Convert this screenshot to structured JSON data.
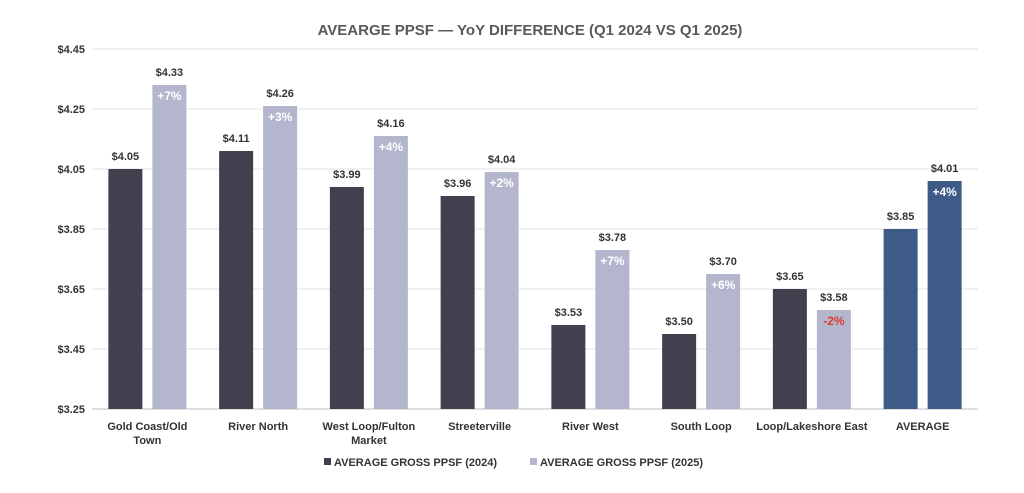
{
  "chart_data": {
    "type": "bar",
    "title": "AVEARGE PPSF — YoY DIFFERENCE (Q1 2024 VS Q1 2025)",
    "categories": [
      [
        "Gold Coast/Old",
        "Town"
      ],
      [
        "River North"
      ],
      [
        "West Loop/Fulton",
        "Market"
      ],
      [
        "Streeterville"
      ],
      [
        "River West"
      ],
      [
        "South Loop"
      ],
      [
        "Loop/Lakeshore East"
      ],
      [
        "AVERAGE"
      ]
    ],
    "series": [
      {
        "name": "AVERAGE GROSS PPSF (2024)",
        "color": "#41404f",
        "values": [
          4.05,
          4.11,
          3.99,
          3.96,
          3.53,
          3.5,
          3.65,
          3.85
        ],
        "labels": [
          "$4.05",
          "$4.11",
          "$3.99",
          "$3.96",
          "$3.53",
          "$3.50",
          "$3.65",
          "$3.85"
        ]
      },
      {
        "name": "AVERAGE GROSS PPSF (2025)",
        "color": "#b3b6cc",
        "values": [
          4.33,
          4.26,
          4.16,
          4.04,
          3.78,
          3.7,
          3.58,
          4.01
        ],
        "labels": [
          "$4.33",
          "$4.26",
          "$4.16",
          "$4.04",
          "$3.78",
          "$3.70",
          "$3.58",
          "$4.01"
        ]
      }
    ],
    "highlight_color": "#3e5a87",
    "highlight_category_index": 7,
    "yoy_change": [
      "+7%",
      "+3%",
      "+4%",
      "+2%",
      "+7%",
      "+6%",
      "-2%",
      "+4%"
    ],
    "yoy_colors": [
      "#ffffff",
      "#ffffff",
      "#ffffff",
      "#ffffff",
      "#ffffff",
      "#ffffff",
      "#e03a2f",
      "#ffffff"
    ],
    "ylim": [
      3.25,
      4.45
    ],
    "yticks": [
      3.25,
      3.45,
      3.65,
      3.85,
      4.05,
      4.25,
      4.45
    ],
    "ytick_labels": [
      "$3.25",
      "$3.45",
      "$3.65",
      "$3.85",
      "$4.05",
      "$4.25",
      "$4.45"
    ],
    "grid": true,
    "legend_position": "bottom"
  }
}
